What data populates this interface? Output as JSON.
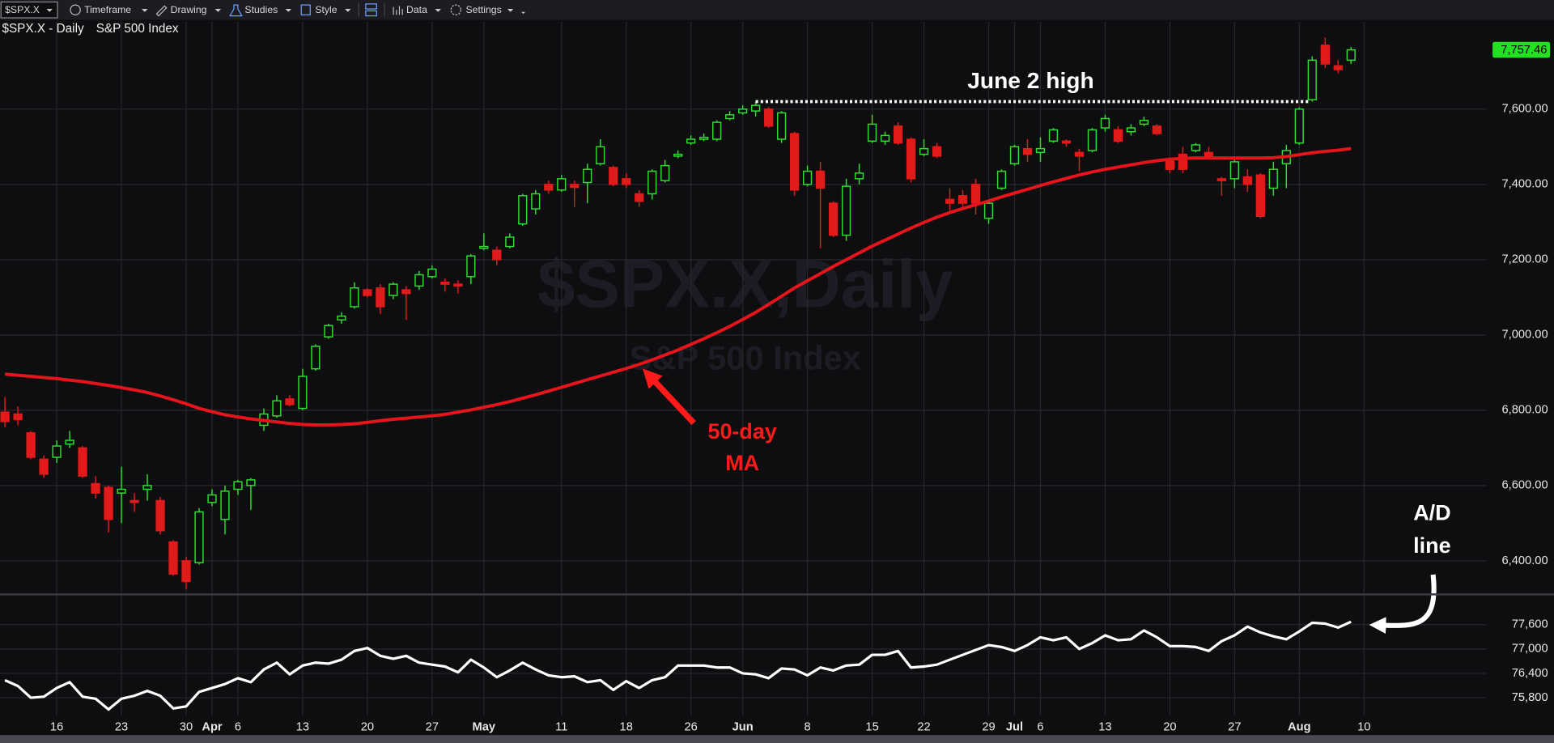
{
  "toolbar": {
    "symbol": "$SPX.X",
    "items": [
      "Timeframe",
      "Drawing",
      "Studies",
      "Style",
      "Data",
      "Settings"
    ]
  },
  "chart_data": [
    {
      "type": "candlestick",
      "title": "$SPX.X - Daily",
      "subtitle": "S&P 500 Index",
      "watermark": "$SPX.X,Daily",
      "watermark_subtitle": "S&P 500 Index",
      "categories": [
        "Mar 10",
        "Mar 11",
        "Mar 12",
        "Mar 13",
        "Mar 16",
        "Mar 17",
        "Mar 18",
        "Mar 19",
        "Mar 20",
        "Mar 23",
        "Mar 24",
        "Mar 25",
        "Mar 26",
        "Mar 27",
        "Mar 30",
        "Mar 31",
        "Apr 1",
        "Apr 2",
        "Apr 6",
        "Apr 7",
        "Apr 8",
        "Apr 9",
        "Apr 10",
        "Apr 13",
        "Apr 14",
        "Apr 15",
        "Apr 16",
        "Apr 17",
        "Apr 20",
        "Apr 21",
        "Apr 22",
        "Apr 23",
        "Apr 24",
        "Apr 27",
        "Apr 28",
        "Apr 29",
        "Apr 30",
        "May 1",
        "May 4",
        "May 5",
        "May 6",
        "May 7",
        "May 8",
        "May 11",
        "May 12",
        "May 13",
        "May 14",
        "May 15",
        "May 18",
        "May 19",
        "May 20",
        "May 21",
        "May 22",
        "May 26",
        "May 27",
        "May 28",
        "May 29",
        "Jun 1",
        "Jun 2",
        "Jun 3",
        "Jun 4",
        "Jun 5",
        "Jun 8",
        "Jun 9",
        "Jun 10",
        "Jun 11",
        "Jun 12",
        "Jun 15",
        "Jun 16",
        "Jun 17",
        "Jun 18",
        "Jun 22",
        "Jun 23",
        "Jun 24",
        "Jun 25",
        "Jun 26",
        "Jun 29",
        "Jun 30",
        "Jul 1",
        "Jul 2",
        "Jul 6",
        "Jul 7",
        "Jul 8",
        "Jul 9",
        "Jul 10",
        "Jul 13",
        "Jul 14",
        "Jul 15",
        "Jul 16",
        "Jul 17",
        "Jul 20",
        "Jul 21",
        "Jul 22",
        "Jul 23",
        "Jul 24",
        "Jul 27",
        "Jul 28",
        "Jul 29",
        "Jul 30",
        "Jul 31",
        "Aug 3",
        "Aug 4",
        "Aug 5",
        "Aug 6",
        "Aug 7"
      ],
      "open": [
        6795,
        6790,
        6740,
        6670,
        6675,
        6710,
        6700,
        6605,
        6595,
        6580,
        6560,
        6590,
        6560,
        6450,
        6400,
        6395,
        6555,
        6510,
        6590,
        6600,
        6760,
        6785,
        6830,
        6805,
        6910,
        6995,
        7040,
        7075,
        7120,
        7125,
        7105,
        7120,
        7130,
        7155,
        7140,
        7135,
        7155,
        7230,
        7225,
        7235,
        7295,
        7335,
        7400,
        7385,
        7400,
        7405,
        7455,
        7445,
        7415,
        7375,
        7375,
        7410,
        7475,
        7510,
        7520,
        7520,
        7575,
        7590,
        7595,
        7600,
        7520,
        7535,
        7400,
        7435,
        7350,
        7265,
        7415,
        7515,
        7515,
        7555,
        7520,
        7480,
        7500,
        7360,
        7370,
        7400,
        7310,
        7390,
        7455,
        7495,
        7485,
        7515,
        7515,
        7485,
        7490,
        7550,
        7545,
        7540,
        7560,
        7555,
        7465,
        7480,
        7490,
        7485,
        7415,
        7415,
        7420,
        7425,
        7390,
        7455,
        7510,
        7625,
        7770,
        7715,
        7730
      ],
      "high": [
        6835,
        6810,
        6745,
        6680,
        6720,
        6745,
        6705,
        6625,
        6600,
        6650,
        6580,
        6630,
        6570,
        6455,
        6410,
        6540,
        6590,
        6600,
        6615,
        6620,
        6805,
        6840,
        6840,
        6910,
        6975,
        7030,
        7060,
        7140,
        7125,
        7135,
        7140,
        7130,
        7170,
        7185,
        7150,
        7145,
        7215,
        7270,
        7235,
        7270,
        7375,
        7385,
        7410,
        7425,
        7410,
        7455,
        7520,
        7450,
        7430,
        7385,
        7440,
        7465,
        7490,
        7530,
        7535,
        7570,
        7595,
        7610,
        7620,
        7605,
        7595,
        7540,
        7450,
        7460,
        7355,
        7415,
        7455,
        7585,
        7540,
        7565,
        7525,
        7520,
        7510,
        7390,
        7385,
        7415,
        7360,
        7440,
        7505,
        7520,
        7525,
        7550,
        7520,
        7495,
        7550,
        7585,
        7555,
        7560,
        7580,
        7560,
        7470,
        7500,
        7510,
        7500,
        7420,
        7470,
        7440,
        7430,
        7460,
        7505,
        7605,
        7740,
        7790,
        7730,
        7765
      ],
      "low": [
        6755,
        6760,
        6670,
        6620,
        6660,
        6700,
        6620,
        6565,
        6475,
        6500,
        6530,
        6560,
        6470,
        6360,
        6325,
        6390,
        6545,
        6470,
        6575,
        6535,
        6745,
        6780,
        6810,
        6800,
        6905,
        6990,
        7030,
        7070,
        7100,
        7055,
        7095,
        7040,
        7120,
        7150,
        7115,
        7110,
        7135,
        7225,
        7185,
        7230,
        7290,
        7320,
        7375,
        7380,
        7340,
        7350,
        7450,
        7395,
        7390,
        7340,
        7360,
        7405,
        7470,
        7505,
        7515,
        7515,
        7570,
        7585,
        7580,
        7550,
        7510,
        7370,
        7395,
        7230,
        7260,
        7250,
        7400,
        7510,
        7505,
        7505,
        7405,
        7475,
        7470,
        7330,
        7340,
        7320,
        7295,
        7385,
        7450,
        7460,
        7460,
        7510,
        7500,
        7435,
        7485,
        7540,
        7510,
        7530,
        7555,
        7530,
        7430,
        7430,
        7485,
        7465,
        7370,
        7390,
        7380,
        7310,
        7370,
        7390,
        7505,
        7620,
        7710,
        7695,
        7720
      ],
      "close": [
        6770,
        6775,
        6675,
        6630,
        6705,
        6720,
        6625,
        6580,
        6510,
        6590,
        6555,
        6600,
        6480,
        6365,
        6345,
        6530,
        6575,
        6585,
        6610,
        6615,
        6790,
        6825,
        6815,
        6890,
        6970,
        7025,
        7050,
        7125,
        7105,
        7075,
        7135,
        7110,
        7160,
        7175,
        7135,
        7130,
        7210,
        7235,
        7200,
        7260,
        7370,
        7375,
        7385,
        7415,
        7392,
        7440,
        7500,
        7400,
        7400,
        7355,
        7435,
        7450,
        7480,
        7520,
        7525,
        7565,
        7585,
        7600,
        7610,
        7555,
        7590,
        7385,
        7435,
        7390,
        7265,
        7395,
        7430,
        7560,
        7530,
        7510,
        7415,
        7495,
        7475,
        7350,
        7350,
        7350,
        7350,
        7435,
        7500,
        7480,
        7495,
        7545,
        7510,
        7475,
        7545,
        7575,
        7515,
        7550,
        7570,
        7535,
        7440,
        7440,
        7505,
        7475,
        7410,
        7460,
        7400,
        7315,
        7440,
        7490,
        7600,
        7730,
        7720,
        7705,
        7757.46
      ],
      "up_color": "#2fdc2f",
      "down_color": "#e11b1b",
      "overlay": {
        "color": "#e8141c",
        "values": [
          6896,
          6893,
          6890,
          6887,
          6884,
          6880,
          6876,
          6871,
          6866,
          6860,
          6854,
          6847,
          6838,
          6828,
          6817,
          6805,
          6796,
          6788,
          6782,
          6777,
          6773,
          6769,
          6765,
          6762,
          6761,
          6761,
          6762,
          6764,
          6768,
          6772,
          6776,
          6779,
          6782,
          6785,
          6789,
          6795,
          6801,
          6808,
          6815,
          6823,
          6832,
          6841,
          6851,
          6861,
          6871,
          6881,
          6891,
          6901,
          6911,
          6922,
          6934,
          6947,
          6960,
          6975,
          6990,
          7006,
          7023,
          7041,
          7060,
          7081,
          7103,
          7125,
          7144,
          7163,
          7182,
          7200,
          7218,
          7236,
          7252,
          7268,
          7284,
          7299,
          7313,
          7325,
          7336,
          7346,
          7356,
          7367,
          7377,
          7387,
          7397,
          7407,
          7416,
          7425,
          7433,
          7440,
          7446,
          7452,
          7458,
          7463,
          7467,
          7469,
          7470,
          7470,
          7470,
          7470,
          7470,
          7470,
          7471,
          7474,
          7479,
          7484,
          7488,
          7491,
          7495
        ]
      },
      "ylim": [
        6316,
        7832
      ],
      "yticks": [
        {
          "value": 6400,
          "label": "6,400.00"
        },
        {
          "value": 6600,
          "label": "6,600.00"
        },
        {
          "value": 6800,
          "label": "6,800.00"
        },
        {
          "value": 7000,
          "label": "7,000.00"
        },
        {
          "value": 7200,
          "label": "7,200.00"
        },
        {
          "value": 7400,
          "label": "7,400.00"
        },
        {
          "value": 7600,
          "label": "7,600.00"
        }
      ],
      "grid": true,
      "last_price": {
        "value": 7757.46,
        "label": "7,757.46",
        "color": "#22e022"
      },
      "annotations": [
        {
          "text": "June 2 high",
          "x": "Jun 2"
        },
        {
          "lines": [
            "50-day",
            "MA"
          ]
        }
      ]
    },
    {
      "type": "line",
      "color": "#ffffff",
      "values": [
        76232,
        76088,
        75800,
        75824,
        76040,
        76184,
        75824,
        75776,
        75512,
        75776,
        75848,
        75968,
        75848,
        75536,
        75584,
        75944,
        76040,
        76136,
        76280,
        76184,
        76496,
        76664,
        76376,
        76592,
        76664,
        76640,
        76736,
        76952,
        77024,
        76832,
        76760,
        76832,
        76664,
        76616,
        76568,
        76424,
        76736,
        76544,
        76304,
        76472,
        76664,
        76496,
        76352,
        76304,
        76328,
        76184,
        76232,
        75992,
        76208,
        76040,
        76232,
        76304,
        76592,
        76592,
        76592,
        76544,
        76544,
        76400,
        76376,
        76280,
        76520,
        76496,
        76352,
        76544,
        76472,
        76592,
        76616,
        76856,
        76856,
        76952,
        76544,
        76568,
        76616,
        76736,
        76856,
        76976,
        77096,
        77048,
        76952,
        77096,
        77288,
        77216,
        77288,
        77000,
        77144,
        77336,
        77216,
        77240,
        77456,
        77288,
        77072,
        77072,
        77048,
        76952,
        77192,
        77336,
        77552,
        77408,
        77312,
        77240,
        77432,
        77648,
        77624,
        77528,
        77672
      ],
      "ylim": [
        75368,
        78296
      ],
      "yticks": [
        {
          "value": 75800,
          "label": "75,800"
        },
        {
          "value": 76400,
          "label": "76,400"
        },
        {
          "value": 77000,
          "label": "77,000"
        },
        {
          "value": 77600,
          "label": "77,600"
        }
      ],
      "grid": true,
      "xticks": [
        {
          "value": "Mar 16",
          "label": "16"
        },
        {
          "value": "Mar 23",
          "label": "23"
        },
        {
          "value": "Mar 30",
          "label": "30"
        },
        {
          "value": "Apr 1",
          "label": "Apr"
        },
        {
          "value": "Apr 6",
          "label": "6"
        },
        {
          "value": "Apr 13",
          "label": "13"
        },
        {
          "value": "Apr 20",
          "label": "20"
        },
        {
          "value": "Apr 27",
          "label": "27"
        },
        {
          "value": "May 1",
          "label": "May"
        },
        {
          "value": "May 11",
          "label": "11"
        },
        {
          "value": "May 18",
          "label": "18"
        },
        {
          "value": "May 26",
          "label": "26"
        },
        {
          "value": "Jun 1",
          "label": "Jun"
        },
        {
          "value": "Jun 8",
          "label": "8"
        },
        {
          "value": "Jun 15",
          "label": "15"
        },
        {
          "value": "Jun 22",
          "label": "22"
        },
        {
          "value": "Jun 29",
          "label": "29"
        },
        {
          "value": "Jul 1",
          "label": "Jul"
        },
        {
          "value": "Jul 6",
          "label": "6"
        },
        {
          "value": "Jul 13",
          "label": "13"
        },
        {
          "value": "Jul 20",
          "label": "20"
        },
        {
          "value": "Jul 27",
          "label": "27"
        },
        {
          "value": "Aug 3",
          "label": "Aug"
        },
        {
          "value": "Aug 10",
          "label": "10"
        }
      ],
      "annotation": {
        "lines": [
          "A/D",
          "line"
        ]
      }
    }
  ]
}
